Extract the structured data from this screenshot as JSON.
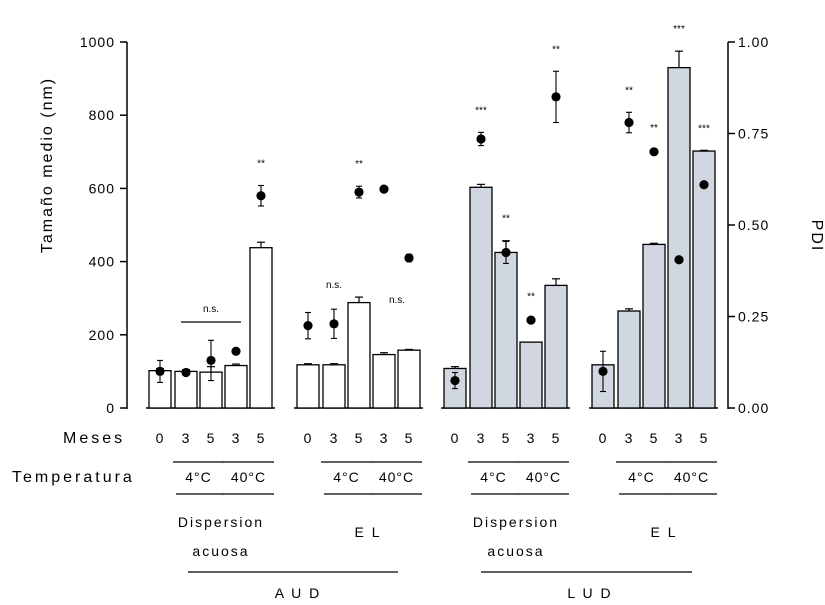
{
  "chart_data": {
    "type": "bar",
    "ylabel": "Tamaño medio (nm)",
    "y2label": "PDI",
    "ylim": [
      0,
      1000
    ],
    "y2lim": [
      0,
      1.0
    ],
    "yticks": [
      "0",
      "200",
      "400",
      "600",
      "800",
      "1000"
    ],
    "y2ticks": [
      "0.00",
      "0.25",
      "0.50",
      "0.75",
      "1.00"
    ],
    "row_labels": {
      "months": "Meses",
      "temperature": "Temperatura"
    },
    "temps": {
      "cold": "4°C",
      "hot": "40°C"
    },
    "ns_label": "n.s.",
    "groups": [
      {
        "name": "AUD - Dispersion acuosa",
        "color": "#ffffff",
        "bars": [
          {
            "month": "0",
            "size": 102,
            "size_err": 6,
            "pdi": 0.1,
            "pdi_err": 0.03
          },
          {
            "month": "3",
            "size": 100,
            "size_err": 5,
            "pdi": 0.097,
            "pdi_err": 0.005,
            "temp": "4°C"
          },
          {
            "month": "5",
            "size": 98,
            "size_err": 15,
            "pdi": 0.13,
            "pdi_err": 0.055,
            "temp": "4°C"
          },
          {
            "month": "3",
            "size": 116,
            "size_err": 4,
            "pdi": 0.155,
            "pdi_err": 0.005,
            "temp": "40°C"
          },
          {
            "month": "5",
            "size": 438,
            "size_err": 15,
            "pdi": 0.58,
            "pdi_err": 0.028,
            "temp": "40°C",
            "sig": "**"
          }
        ]
      },
      {
        "name": "AUD - EL",
        "color": "#ffffff",
        "bars": [
          {
            "month": "0",
            "size": 118,
            "size_err": 3,
            "pdi": 0.225,
            "pdi_err": 0.036
          },
          {
            "month": "3",
            "size": 118,
            "size_err": 3,
            "pdi": 0.23,
            "pdi_err": 0.04,
            "temp": "4°C"
          },
          {
            "month": "5",
            "size": 288,
            "size_err": 15,
            "pdi": 0.59,
            "pdi_err": 0.016,
            "temp": "4°C",
            "sig": "**"
          },
          {
            "month": "3",
            "size": 146,
            "size_err": 5,
            "pdi": 0.598,
            "pdi_err": 0.005,
            "temp": "40°C"
          },
          {
            "month": "5",
            "size": 158,
            "size_err": 2,
            "pdi": 0.41,
            "pdi_err": 0.01,
            "temp": "40°C"
          }
        ]
      },
      {
        "name": "LUD - Dispersion acuosa",
        "color": "#d0d7e0",
        "bars": [
          {
            "month": "0",
            "size": 108,
            "size_err": 5,
            "pdi": 0.075,
            "pdi_err": 0.022
          },
          {
            "month": "3",
            "size": 603,
            "size_err": 8,
            "pdi": 0.735,
            "pdi_err": 0.018,
            "temp": "4°C",
            "sig": "***"
          },
          {
            "month": "5",
            "size": 425,
            "size_err": 32,
            "pdi": 0.425,
            "pdi_err": 0.03,
            "temp": "4°C",
            "sig": "**"
          },
          {
            "month": "3",
            "size": 180,
            "size_err": 0,
            "pdi": 0.24,
            "pdi_err": 0.005,
            "temp": "40°C",
            "sig": "**"
          },
          {
            "month": "5",
            "size": 335,
            "size_err": 18,
            "pdi": 0.85,
            "pdi_err": 0.07,
            "temp": "40°C",
            "sig": "**"
          }
        ]
      },
      {
        "name": "LUD - EL",
        "color": "#d0d7e0",
        "bars": [
          {
            "month": "0",
            "size": 118,
            "size_err": 0,
            "pdi": 0.1,
            "pdi_err": 0.055
          },
          {
            "month": "3",
            "size": 265,
            "size_err": 6,
            "pdi": 0.78,
            "pdi_err": 0.028,
            "temp": "4°C",
            "sig": "**"
          },
          {
            "month": "5",
            "size": 447,
            "size_err": 3,
            "pdi": 0.7,
            "pdi_err": 0.005,
            "temp": "4°C",
            "sig": "**"
          },
          {
            "month": "3",
            "size": 930,
            "size_err": 45,
            "pdi": 0.405,
            "pdi_err": 0.005,
            "temp": "40°C",
            "sig": "***"
          },
          {
            "month": "5",
            "size": 702,
            "size_err": 2,
            "pdi": 0.61,
            "pdi_err": 0.005,
            "temp": "40°C",
            "sig": "***"
          }
        ]
      }
    ],
    "subgroup_labels": [
      [
        "Dispersion",
        "acuosa"
      ],
      [
        "E L"
      ],
      [
        "Dispersion",
        "acuosa"
      ],
      [
        "E L"
      ]
    ],
    "main_groups": [
      "A U D",
      "L U D"
    ]
  }
}
